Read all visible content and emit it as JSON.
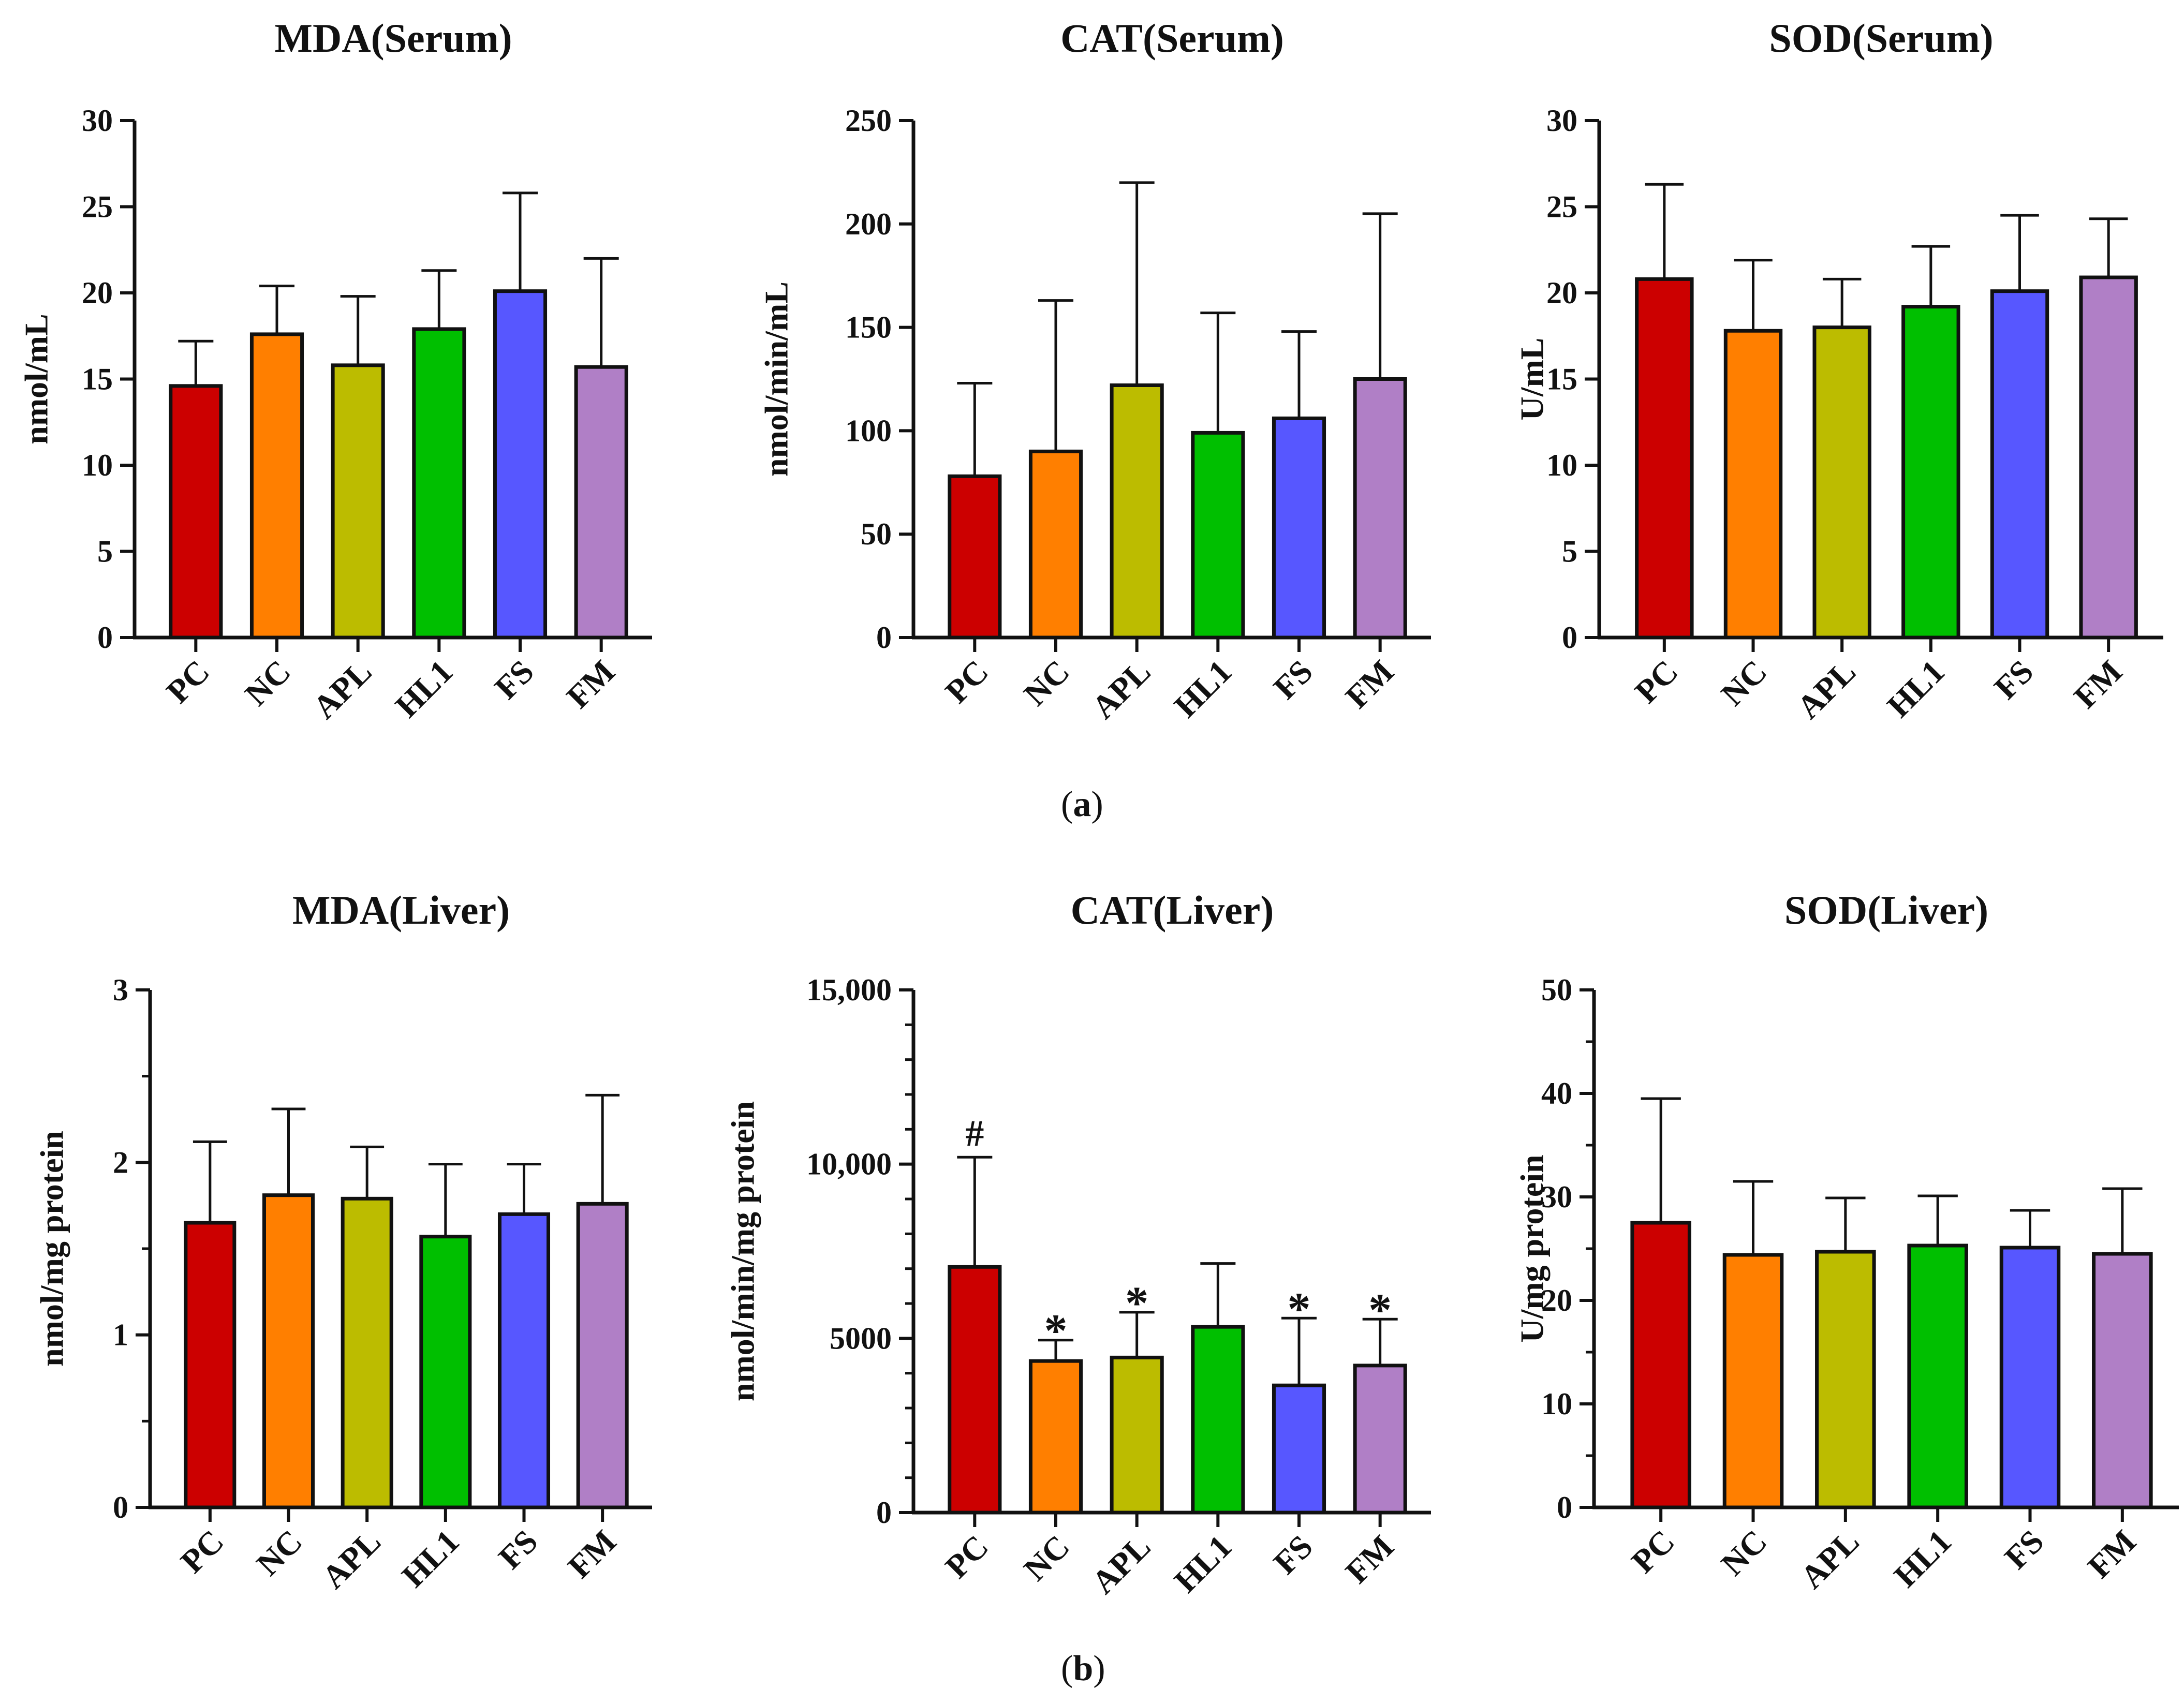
{
  "figure": {
    "panel_a": "a",
    "panel_b": "b"
  },
  "colors": {
    "PC": "#cc0000",
    "NC": "#ff7f00",
    "APL": "#bcbc00",
    "HL1": "#00bf00",
    "FS": "#5757ff",
    "FM": "#b07fc6",
    "axis": "#111111"
  },
  "chart_data": [
    {
      "type": "bar",
      "title": "MDA(Serum)",
      "ylabel": "nmol/mL",
      "xlabel": "",
      "categories": [
        "PC",
        "NC",
        "APL",
        "HL1",
        "FS",
        "FM"
      ],
      "values": [
        14.6,
        17.6,
        15.8,
        17.9,
        20.1,
        15.7
      ],
      "error_upper": [
        17.2,
        20.4,
        19.8,
        21.3,
        25.8,
        22.0
      ],
      "annotations": [
        "",
        "",
        "",
        "",
        "",
        ""
      ],
      "ylim": [
        0,
        30
      ],
      "yticks": [
        0,
        5,
        10,
        15,
        20,
        25,
        30
      ],
      "ytick_labels": [
        "0",
        "5",
        "10",
        "15",
        "20",
        "25",
        "30"
      ],
      "minor_ticks": []
    },
    {
      "type": "bar",
      "title": "CAT(Serum)",
      "ylabel": "nmol/min/mL",
      "xlabel": "",
      "categories": [
        "PC",
        "NC",
        "APL",
        "HL1",
        "FS",
        "FM"
      ],
      "values": [
        78,
        90,
        122,
        99,
        106,
        125
      ],
      "error_upper": [
        123,
        163,
        220,
        157,
        148,
        205
      ],
      "annotations": [
        "",
        "",
        "",
        "",
        "",
        ""
      ],
      "ylim": [
        0,
        250
      ],
      "yticks": [
        0,
        50,
        100,
        150,
        200,
        250
      ],
      "ytick_labels": [
        "0",
        "50",
        "100",
        "150",
        "200",
        "250"
      ],
      "minor_ticks": []
    },
    {
      "type": "bar",
      "title": "SOD(Serum)",
      "ylabel": "U/mL",
      "xlabel": "",
      "categories": [
        "PC",
        "NC",
        "APL",
        "HL1",
        "FS",
        "FM"
      ],
      "values": [
        20.8,
        17.8,
        18.0,
        19.2,
        20.1,
        20.9
      ],
      "error_upper": [
        26.3,
        21.9,
        20.8,
        22.7,
        24.5,
        24.3
      ],
      "annotations": [
        "",
        "",
        "",
        "",
        "",
        ""
      ],
      "ylim": [
        0,
        30
      ],
      "yticks": [
        0,
        5,
        10,
        15,
        20,
        25,
        30
      ],
      "ytick_labels": [
        "0",
        "5",
        "10",
        "15",
        "20",
        "25",
        "30"
      ],
      "minor_ticks": []
    },
    {
      "type": "bar",
      "title": "MDA(Liver)",
      "ylabel": "nmol/mg protein",
      "xlabel": "",
      "categories": [
        "PC",
        "NC",
        "APL",
        "HL1",
        "FS",
        "FM"
      ],
      "values": [
        1.65,
        1.81,
        1.79,
        1.57,
        1.7,
        1.76
      ],
      "error_upper": [
        2.12,
        2.31,
        2.09,
        1.99,
        1.99,
        2.39
      ],
      "annotations": [
        "",
        "",
        "",
        "",
        "",
        ""
      ],
      "ylim": [
        0,
        3
      ],
      "yticks": [
        0,
        1,
        2,
        3
      ],
      "ytick_labels": [
        "0",
        "1",
        "2",
        "3"
      ],
      "minor_ticks": [
        0.5,
        1.5,
        2.5
      ]
    },
    {
      "type": "bar",
      "title": "CAT(Liver)",
      "ylabel": "nmol/min/mg protein",
      "xlabel": "",
      "categories": [
        "PC",
        "NC",
        "APL",
        "HL1",
        "FS",
        "FM"
      ],
      "values": [
        7050,
        4350,
        4450,
        5330,
        3650,
        4220
      ],
      "error_upper": [
        10200,
        4950,
        5750,
        7150,
        5580,
        5550
      ],
      "annotations": [
        "#",
        "*",
        "*",
        "",
        "*",
        "*"
      ],
      "ylim": [
        0,
        15000
      ],
      "yticks": [
        0,
        5000,
        10000,
        15000
      ],
      "ytick_labels": [
        "0",
        "5000",
        "10,000",
        "15,000"
      ],
      "minor_ticks": [
        1000,
        2000,
        3000,
        4000,
        6000,
        7000,
        8000,
        9000,
        11000,
        12000,
        13000,
        14000
      ]
    },
    {
      "type": "bar",
      "title": "SOD(Liver)",
      "ylabel": "U/mg protein",
      "xlabel": "",
      "categories": [
        "PC",
        "NC",
        "APL",
        "HL1",
        "FS",
        "FM"
      ],
      "values": [
        27.5,
        24.4,
        24.7,
        25.3,
        25.1,
        24.5
      ],
      "error_upper": [
        39.5,
        31.5,
        29.9,
        30.1,
        28.7,
        30.8
      ],
      "annotations": [
        "",
        "",
        "",
        "",
        "",
        ""
      ],
      "ylim": [
        0,
        50
      ],
      "yticks": [
        0,
        10,
        20,
        30,
        40,
        50
      ],
      "ytick_labels": [
        "0",
        "10",
        "20",
        "30",
        "40",
        "50"
      ],
      "minor_ticks": [
        5,
        15,
        25,
        35,
        45
      ]
    }
  ]
}
